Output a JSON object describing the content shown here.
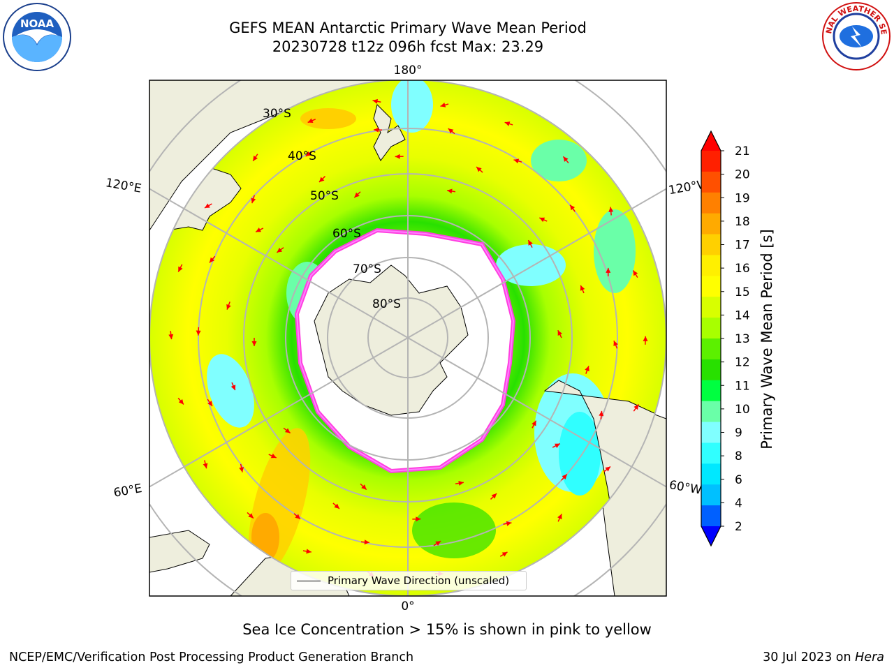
{
  "title": {
    "line1": "GEFS MEAN Antarctic Primary Wave Mean Period",
    "line2": "20230728 t12z 096h fcst   Max: 23.29"
  },
  "map": {
    "lon_labels": {
      "top": "180°",
      "bottom": "0°",
      "upper_left": "120°E",
      "upper_right": "120°W",
      "lower_left": "60°E",
      "lower_right": "60°W"
    },
    "lat_labels": [
      "30°S",
      "40°S",
      "50°S",
      "60°S",
      "70°S",
      "80°S"
    ],
    "legend_label": "Primary Wave Direction (unscaled)"
  },
  "colorbar": {
    "label": "Primary Wave Mean Period [s]",
    "ticks": [
      "21",
      "20",
      "19",
      "18",
      "17",
      "16",
      "15",
      "14",
      "13",
      "12",
      "11",
      "10",
      "9",
      "8",
      "6",
      "4",
      "2"
    ],
    "colors": [
      "#ff2000",
      "#ff5000",
      "#ff8000",
      "#ffaa00",
      "#ffd000",
      "#fff000",
      "#ffff00",
      "#d8ff00",
      "#a8ff00",
      "#5cf000",
      "#28e000",
      "#00ff40",
      "#6affa8",
      "#80ffff",
      "#30ffff",
      "#00e8ff",
      "#00c0ff",
      "#0060ff"
    ],
    "extend_top_color": "#ff0000",
    "extend_bottom_color": "#0000ff"
  },
  "caption": "Sea Ice Concentration > 15% is shown in pink to yellow",
  "footer": {
    "left": "NCEP/EMC/Verification Post Processing Product Generation Branch",
    "right_date": "30 Jul 2023 on ",
    "right_host": "Hera"
  },
  "logos": {
    "left_text": "NOAA",
    "right_text": "NATIONAL WEATHER SERVICE"
  },
  "colors": {
    "land": "#eeeedd",
    "ocean_base": "#ffff00",
    "arrow": "#ff0000",
    "grid": "#b4b4b4",
    "ice_edge": "#ff40e0"
  }
}
